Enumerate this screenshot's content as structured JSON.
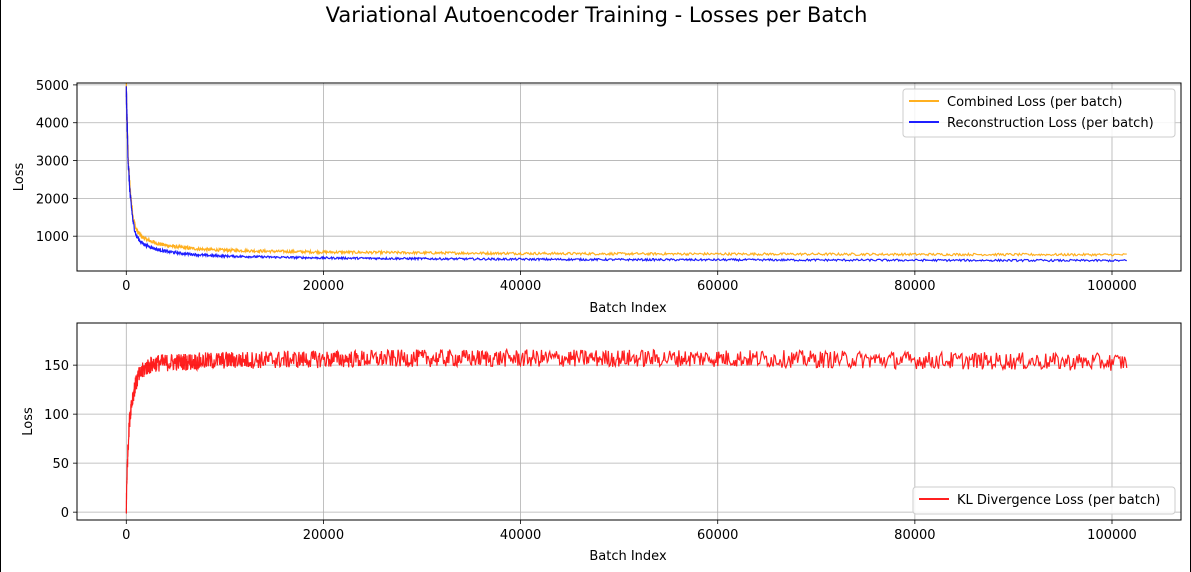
{
  "figure": {
    "suptitle": "Variational Autoencoder Training - Losses per Batch"
  },
  "chart_data": [
    {
      "type": "line",
      "title": "",
      "xlabel": "Batch Index",
      "ylabel": "Loss",
      "xlim": [
        -5000,
        107000
      ],
      "ylim": [
        80,
        5050
      ],
      "xticks": [
        0,
        20000,
        40000,
        60000,
        80000,
        100000
      ],
      "yticks": [
        1000,
        2000,
        3000,
        4000,
        5000
      ],
      "grid": true,
      "legend_position": "upper right",
      "series": [
        {
          "name": "Combined Loss (per batch)",
          "color": "#ffa500",
          "noise": 28,
          "x": [
            0,
            100,
            200,
            400,
            700,
            1000,
            1500,
            2000,
            3000,
            4000,
            6000,
            8000,
            10000,
            15000,
            20000,
            30000,
            40000,
            50000,
            60000,
            70000,
            80000,
            90000,
            101500
          ],
          "y": [
            4800,
            3900,
            3000,
            2200,
            1500,
            1180,
            1000,
            920,
            820,
            760,
            690,
            650,
            630,
            600,
            580,
            560,
            545,
            535,
            530,
            525,
            520,
            515,
            510
          ]
        },
        {
          "name": "Reconstruction Loss (per batch)",
          "color": "#0000ff",
          "noise": 28,
          "x": [
            0,
            100,
            200,
            400,
            700,
            1000,
            1500,
            2000,
            3000,
            4000,
            6000,
            8000,
            10000,
            15000,
            20000,
            30000,
            40000,
            50000,
            60000,
            70000,
            80000,
            90000,
            101500
          ],
          "y": [
            4800,
            3850,
            2900,
            2050,
            1350,
            1020,
            840,
            760,
            660,
            600,
            535,
            495,
            475,
            445,
            425,
            405,
            390,
            380,
            375,
            370,
            365,
            360,
            355
          ]
        }
      ]
    },
    {
      "type": "line",
      "title": "",
      "xlabel": "Batch Index",
      "ylabel": "Loss",
      "xlim": [
        -5000,
        107000
      ],
      "ylim": [
        -8,
        193
      ],
      "xticks": [
        0,
        20000,
        40000,
        60000,
        80000,
        100000
      ],
      "yticks": [
        0,
        50,
        100,
        150
      ],
      "grid": true,
      "legend_position": "lower right",
      "series": [
        {
          "name": "KL Divergence Loss (per batch)",
          "color": "#ff0000",
          "noise": 9,
          "x": [
            0,
            50,
            150,
            300,
            500,
            800,
            1200,
            2000,
            3000,
            5000,
            10000,
            20000,
            30000,
            40000,
            50000,
            60000,
            70000,
            80000,
            90000,
            101500
          ],
          "y": [
            0,
            30,
            60,
            90,
            110,
            125,
            138,
            148,
            152,
            153,
            155,
            156,
            157,
            157,
            157,
            157,
            156,
            155,
            154,
            153
          ]
        }
      ]
    }
  ]
}
